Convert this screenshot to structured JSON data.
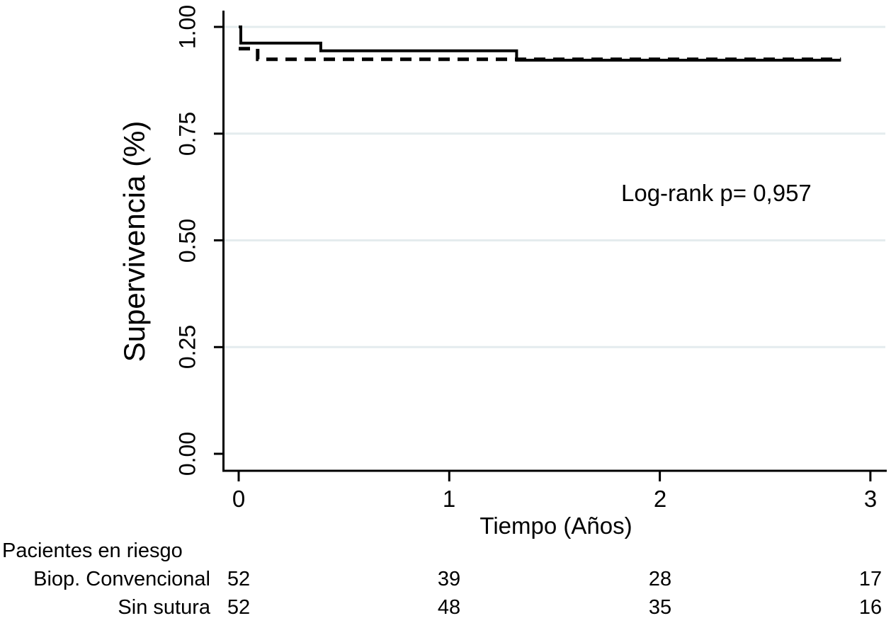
{
  "colors": {
    "line": "#000000",
    "grid": "#e4ecee",
    "background": "#ffffff",
    "text": "#000000"
  },
  "chart_data": {
    "type": "line",
    "subtype": "kaplan-meier-step-curves",
    "title": "",
    "xlabel": "Tiempo (Años)",
    "ylabel": "Supervivencia (%)",
    "xlim": [
      0,
      3
    ],
    "ylim": [
      0.0,
      1.0
    ],
    "xticks": [
      {
        "v": 0,
        "label": "0"
      },
      {
        "v": 1,
        "label": "1"
      },
      {
        "v": 2,
        "label": "2"
      },
      {
        "v": 3,
        "label": "3"
      }
    ],
    "yticks": [
      {
        "v": 0.0,
        "label": "0.00",
        "grid": false
      },
      {
        "v": 0.25,
        "label": "0.25",
        "grid": true
      },
      {
        "v": 0.5,
        "label": "0.50",
        "grid": true
      },
      {
        "v": 0.75,
        "label": "0.75",
        "grid": true
      },
      {
        "v": 1.0,
        "label": "1.00",
        "grid": true
      }
    ],
    "grid": "light horizontal gridlines at y ticks",
    "legend": "none (line styles only: solid and dashed)",
    "annotation": "Log-rank p= 0,957",
    "series": [
      {
        "name": "solid",
        "style": "solid",
        "points": [
          [
            0,
            1.0
          ],
          [
            0.01,
            1.0
          ],
          [
            0.01,
            0.962
          ],
          [
            0.39,
            0.962
          ],
          [
            0.39,
            0.944
          ],
          [
            1.32,
            0.944
          ],
          [
            1.32,
            0.922
          ],
          [
            2.86,
            0.922
          ]
        ]
      },
      {
        "name": "dashed",
        "style": "dashed",
        "points": [
          [
            0,
            0.949
          ],
          [
            0.09,
            0.949
          ],
          [
            0.09,
            0.924
          ],
          [
            2.86,
            0.924
          ]
        ]
      }
    ],
    "risk_table": {
      "title": "Pacientes en riesgo",
      "times": [
        0,
        1,
        2,
        3
      ],
      "rows": [
        {
          "label": "Biop. Convencional",
          "values": [
            "52",
            "39",
            "28",
            "17"
          ]
        },
        {
          "label": "Sin sutura",
          "values": [
            "52",
            "48",
            "35",
            "16"
          ]
        }
      ]
    }
  }
}
